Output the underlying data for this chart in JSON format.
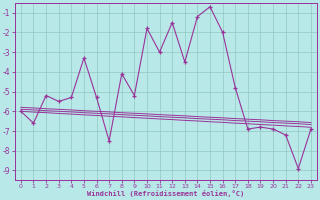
{
  "x": [
    0,
    1,
    2,
    3,
    4,
    5,
    6,
    7,
    8,
    9,
    10,
    11,
    12,
    13,
    14,
    15,
    16,
    17,
    18,
    19,
    20,
    21,
    22,
    23
  ],
  "y_main": [
    -6.0,
    -6.6,
    -5.2,
    -5.5,
    -5.3,
    -3.3,
    -5.3,
    -7.5,
    -4.1,
    -5.2,
    -1.8,
    -3.0,
    -1.5,
    -3.5,
    -1.2,
    -0.7,
    -2.0,
    -4.8,
    -6.9,
    -6.8,
    -6.9,
    -7.2,
    -8.9,
    -6.9
  ],
  "y_reg1": [
    -5.8,
    -5.83,
    -5.87,
    -5.9,
    -5.93,
    -5.97,
    -6.0,
    -6.03,
    -6.07,
    -6.1,
    -6.13,
    -6.17,
    -6.2,
    -6.23,
    -6.27,
    -6.3,
    -6.33,
    -6.37,
    -6.4,
    -6.43,
    -6.47,
    -6.5,
    -6.53,
    -6.57
  ],
  "y_reg2": [
    -5.9,
    -5.93,
    -5.97,
    -6.0,
    -6.03,
    -6.07,
    -6.1,
    -6.13,
    -6.17,
    -6.2,
    -6.23,
    -6.27,
    -6.3,
    -6.33,
    -6.37,
    -6.4,
    -6.43,
    -6.47,
    -6.5,
    -6.53,
    -6.57,
    -6.6,
    -6.63,
    -6.67
  ],
  "y_reg3": [
    -6.0,
    -6.04,
    -6.07,
    -6.11,
    -6.14,
    -6.18,
    -6.21,
    -6.25,
    -6.28,
    -6.32,
    -6.35,
    -6.39,
    -6.42,
    -6.46,
    -6.49,
    -6.53,
    -6.56,
    -6.6,
    -6.63,
    -6.67,
    -6.7,
    -6.74,
    -6.77,
    -6.81
  ],
  "line_color": "#993399",
  "bg_color": "#b8e8e8",
  "grid_color": "#90c8c0",
  "xlabel": "Windchill (Refroidissement éolien,°C)",
  "ylim": [
    -9.5,
    -0.5
  ],
  "xlim": [
    -0.5,
    23.5
  ],
  "yticks": [
    -9,
    -8,
    -7,
    -6,
    -5,
    -4,
    -3,
    -2,
    -1
  ],
  "xticks": [
    0,
    1,
    2,
    3,
    4,
    5,
    6,
    7,
    8,
    9,
    10,
    11,
    12,
    13,
    14,
    15,
    16,
    17,
    18,
    19,
    20,
    21,
    22,
    23
  ]
}
